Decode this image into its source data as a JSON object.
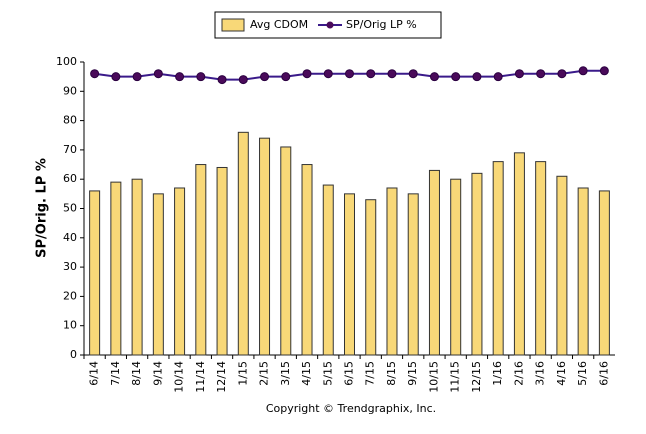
{
  "chart_data": {
    "type": "combo",
    "ylabel": "SP/Orig. LP %",
    "note": "Copyright © Trendgraphix, Inc.",
    "categories": [
      "6/14",
      "7/14",
      "8/14",
      "9/14",
      "10/14",
      "11/14",
      "12/14",
      "1/15",
      "2/15",
      "3/15",
      "4/15",
      "5/15",
      "6/15",
      "7/15",
      "8/15",
      "9/15",
      "10/15",
      "11/15",
      "12/15",
      "1/16",
      "2/16",
      "3/16",
      "4/16",
      "5/16",
      "6/16"
    ],
    "series": [
      {
        "name": "Avg CDOM",
        "type": "bar",
        "color": "#f8d878",
        "values": [
          56,
          59,
          60,
          55,
          57,
          65,
          64,
          76,
          74,
          71,
          65,
          58,
          55,
          53,
          57,
          55,
          63,
          60,
          62,
          66,
          69,
          66,
          61,
          57,
          56
        ]
      },
      {
        "name": "SP/Orig LP %",
        "type": "line",
        "color": "#3a1a8a",
        "values": [
          96,
          95,
          95,
          96,
          95,
          95,
          94,
          94,
          95,
          95,
          96,
          96,
          96,
          96,
          96,
          96,
          95,
          95,
          95,
          95,
          96,
          96,
          96,
          97,
          97
        ]
      }
    ],
    "ylim": [
      0,
      100
    ],
    "yticks": [
      0,
      10,
      20,
      30,
      40,
      50,
      60,
      70,
      80,
      90,
      100
    ],
    "grid": false
  }
}
